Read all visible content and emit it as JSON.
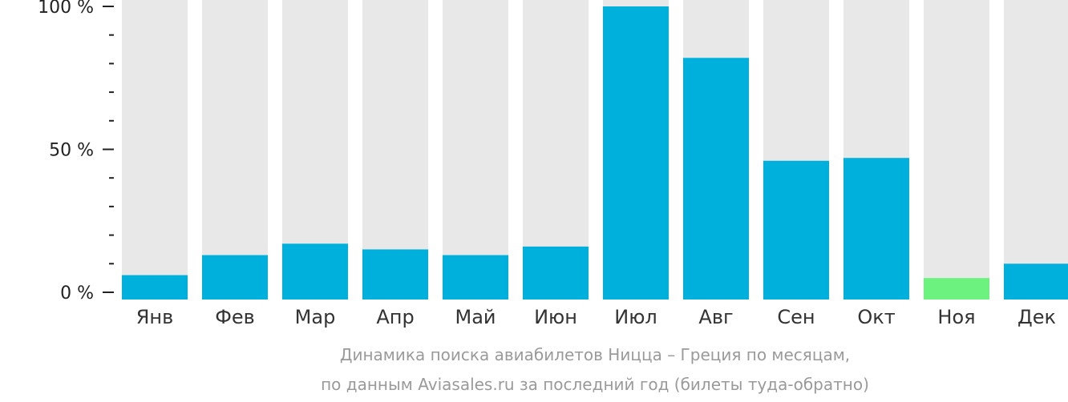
{
  "chart_data": {
    "type": "bar",
    "categories": [
      "Янв",
      "Фев",
      "Мар",
      "Апр",
      "Май",
      "Июн",
      "Июл",
      "Авг",
      "Сен",
      "Окт",
      "Ноя",
      "Дек"
    ],
    "values": [
      6,
      13,
      17,
      15,
      13,
      16,
      100,
      82,
      46,
      47,
      5,
      10
    ],
    "ylim": [
      0,
      100
    ],
    "y_ticks": [
      {
        "value": 0,
        "label": "0 %"
      },
      {
        "value": 50,
        "label": "50 %"
      },
      {
        "value": 100,
        "label": "100 %"
      }
    ],
    "minor_tick_step": 10,
    "highlight_index": 10,
    "colors": {
      "bar": "#00b0dc",
      "highlight": "#6cf27f",
      "background_bar": "#e8e8e8",
      "axis": "#222222"
    },
    "caption_lines": [
      "Динамика поиска авиабилетов Ницца – Греция по месяцам,",
      "по данным Aviasales.ru за последний год (билеты туда-обратно)"
    ]
  }
}
